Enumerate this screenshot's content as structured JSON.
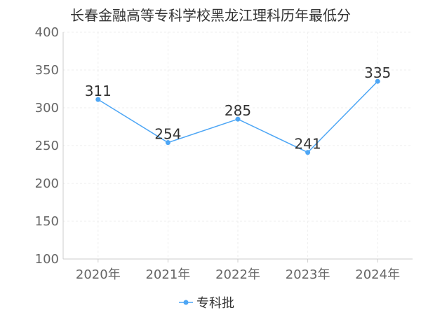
{
  "chart_data": {
    "type": "line",
    "title": "长春金融高等专科学校黑龙江理科历年最低分",
    "categories": [
      "2020年",
      "2021年",
      "2022年",
      "2023年",
      "2024年"
    ],
    "series": [
      {
        "name": "专科批",
        "values": [
          311,
          254,
          285,
          241,
          335
        ],
        "color": "#4da6f5"
      }
    ],
    "ylim": [
      100,
      400
    ],
    "yticks": [
      100,
      150,
      200,
      250,
      300,
      350,
      400
    ],
    "xlabel": "",
    "ylabel": "",
    "grid": true,
    "legend_position": "bottom-center"
  }
}
